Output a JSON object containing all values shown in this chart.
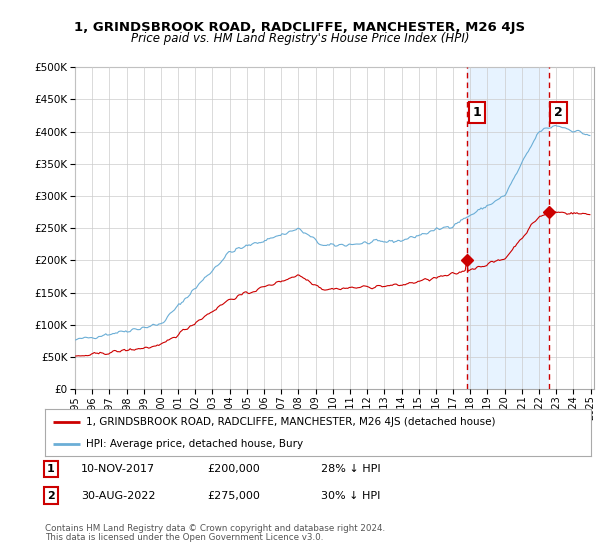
{
  "title": "1, GRINDSBROOK ROAD, RADCLIFFE, MANCHESTER, M26 4JS",
  "subtitle": "Price paid vs. HM Land Registry's House Price Index (HPI)",
  "legend_line1": "1, GRINDSBROOK ROAD, RADCLIFFE, MANCHESTER, M26 4JS (detached house)",
  "legend_line2": "HPI: Average price, detached house, Bury",
  "table_rows": [
    {
      "num": "1",
      "date": "10-NOV-2017",
      "price": "£200,000",
      "hpi": "28% ↓ HPI"
    },
    {
      "num": "2",
      "date": "30-AUG-2022",
      "price": "£275,000",
      "hpi": "30% ↓ HPI"
    }
  ],
  "footnote1": "Contains HM Land Registry data © Crown copyright and database right 2024.",
  "footnote2": "This data is licensed under the Open Government Licence v3.0.",
  "sale1_year": 2017.833,
  "sale1_price": 200000,
  "sale2_year": 2022.583,
  "sale2_price": 275000,
  "hpi_color": "#6baed6",
  "sale_color": "#cc0000",
  "vline_color": "#cc0000",
  "shade_color": "#ddeeff",
  "ylim_min": 0,
  "ylim_max": 500000,
  "xlim_min": 1995.0,
  "xlim_max": 2025.2,
  "background_color": "#ffffff",
  "plot_bg_color": "#ffffff",
  "grid_color": "#cccccc"
}
